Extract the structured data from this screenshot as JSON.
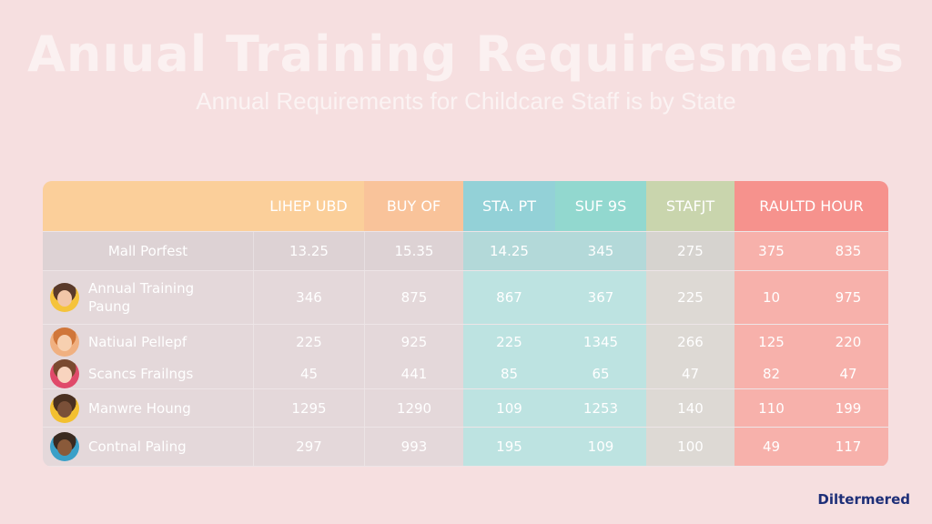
{
  "title": "Anıual Training Requiresments",
  "subtitle": "Annual Requirements for Childcare Staff is by State",
  "table": {
    "headers": [
      "",
      "LIHEP UBD",
      "BUY OF",
      "STA. PT",
      "SUF 9S",
      "STAFJT",
      "RAULTD HOUR"
    ],
    "rows": [
      {
        "label": "Mall Porfest",
        "values": [
          "13.25",
          "15.35",
          "14.25",
          "345",
          "275",
          "375",
          "835"
        ]
      },
      {
        "label": "Annual Training Paung",
        "avatar": "girl-avatar-icon",
        "values": [
          "346",
          "875",
          "867",
          "367",
          "225",
          "10",
          "975"
        ]
      },
      {
        "label": "Natiual Pellepf",
        "avatar": "redhead-avatar-icon",
        "values": [
          "225",
          "925",
          "225",
          "1345",
          "266",
          "125",
          "220"
        ]
      },
      {
        "label": "Scancs Frailngs",
        "avatar": "child-avatar-icon",
        "values": [
          "45",
          "441",
          "85",
          "65",
          "47",
          "82",
          "47"
        ]
      },
      {
        "label": "Manwre Houng",
        "avatar": "man-avatar-icon",
        "values": [
          "1295",
          "1290",
          "109",
          "1253",
          "140",
          "110",
          "199"
        ]
      },
      {
        "label": "Contnal Paling",
        "avatar": "boy-avatar-icon",
        "values": [
          "297",
          "993",
          "195",
          "109",
          "100",
          "49",
          "117"
        ]
      }
    ]
  },
  "colors": {
    "header_orange": "#fbcf9a",
    "header_teal": "#93d1d7",
    "header_green": "#c9d5ad",
    "header_red": "#f6928d"
  },
  "brand": "Diltermered"
}
